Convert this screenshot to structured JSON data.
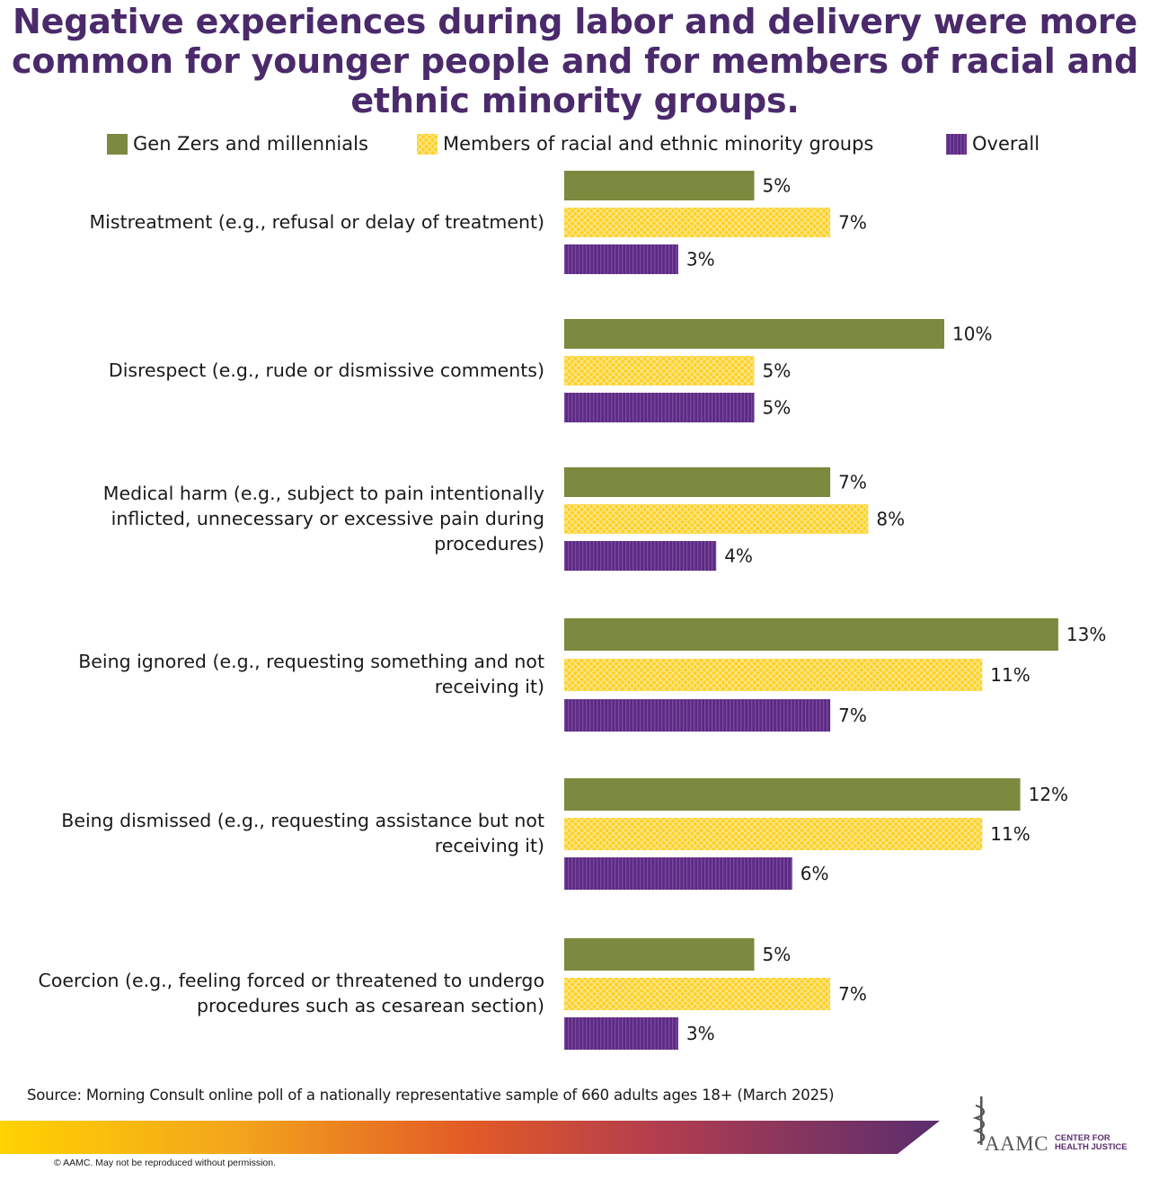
{
  "title": "Negative experiences during labor and delivery were more common for younger people and for members of racial and ethnic minority groups.",
  "legend": {
    "genz": "Gen Zers and millennials",
    "minority": "Members of racial and ethnic minority groups",
    "overall": "Overall"
  },
  "colors": {
    "genz": "#7b8a3e",
    "minority": "#ffd21f",
    "overall": "#5c2a82",
    "title": "#4a2a6b"
  },
  "chart_data": {
    "type": "bar",
    "orientation": "horizontal",
    "categories": [
      "Mistreatment (e.g., refusal or delay of treatment)",
      "Disrespect (e.g., rude or dismissive comments)",
      "Medical harm (e.g., subject to pain intentionally inflicted, unnecessary or excessive pain during procedures)",
      "Being ignored (e.g., requesting something and not receiving it)",
      "Being dismissed (e.g., requesting assistance but not receiving it)",
      "Coercion (e.g., feeling forced or threatened to undergo procedures such as cesarean section)"
    ],
    "series": [
      {
        "name": "Gen Zers and millennials",
        "values": [
          5,
          10,
          7,
          13,
          12,
          5
        ],
        "labels": [
          "5%",
          "10%",
          "7%",
          "13%",
          "12%",
          "5%"
        ]
      },
      {
        "name": "Members of racial and ethnic minority groups",
        "values": [
          7,
          5,
          8,
          11,
          11,
          7
        ],
        "labels": [
          "7%",
          "5%",
          "8%",
          "11%",
          "11%",
          "7%"
        ]
      },
      {
        "name": "Overall",
        "values": [
          3,
          5,
          4,
          7,
          6,
          3
        ],
        "labels": [
          "3%",
          "5%",
          "4%",
          "7%",
          "6%",
          "3%"
        ]
      }
    ],
    "legend_position": "top",
    "grid": false,
    "xlim": [
      0,
      14
    ]
  },
  "source": "Source: Morning Consult online poll of a nationally representative sample of 660 adults ages 18+ (March 2025)",
  "copyright": "© AAMC. May not be reproduced without permission.",
  "logo": {
    "name": "AAMC",
    "sub1": "CENTER FOR",
    "sub2": "HEALTH JUSTICE"
  }
}
